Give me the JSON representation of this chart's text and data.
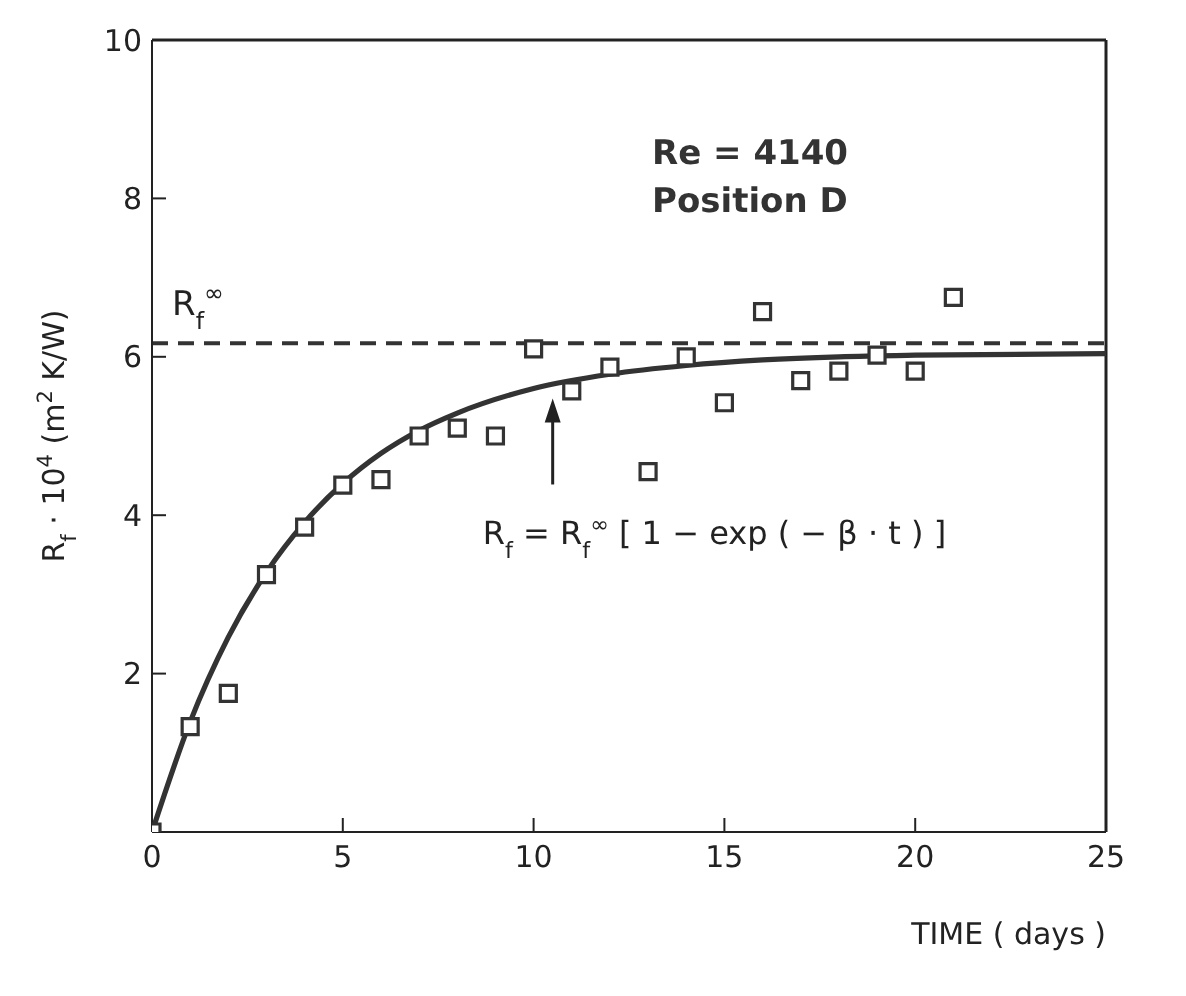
{
  "chart_data": {
    "type": "scatter",
    "xlabel": "TIME ( days )",
    "ylabel": "R$_{f}$ · 10$^{4}$ (m$^{2}$ K/W)",
    "xlim": [
      0,
      25
    ],
    "xticks": [
      0,
      5,
      10,
      15,
      20,
      25
    ],
    "ylim": [
      0,
      10
    ],
    "yticks": [
      {
        "value": 0,
        "label": null
      },
      2,
      4,
      6,
      8,
      10
    ],
    "grid": false,
    "legend": false,
    "series": [
      {
        "marker": "square",
        "color": "#333333",
        "x": [
          0,
          1,
          2,
          3,
          4,
          5,
          6,
          7,
          8,
          9,
          10,
          11,
          12,
          13,
          14,
          15,
          16,
          17,
          18,
          19,
          20,
          21
        ],
        "values": [
          0,
          1.33,
          1.75,
          3.25,
          3.85,
          4.38,
          4.45,
          5.0,
          5.1,
          5.0,
          6.1,
          5.57,
          5.87,
          4.55,
          6.0,
          5.42,
          6.57,
          5.7,
          5.82,
          6.02,
          5.82,
          6.75
        ]
      },
      {
        "type": "line",
        "marker": "none",
        "line_style": "solid",
        "color": "#333333",
        "x": [
          0,
          1,
          2,
          3,
          4,
          5,
          6,
          7,
          8,
          10,
          12,
          14,
          16,
          18,
          20,
          25
        ],
        "values": [
          0,
          1.39,
          2.46,
          3.28,
          3.91,
          4.4,
          4.78,
          5.07,
          5.29,
          5.6,
          5.78,
          5.89,
          5.96,
          6.0,
          6.02,
          6.04
        ]
      }
    ],
    "ref_lines": [
      {
        "axis": "y",
        "value": 6.17,
        "label": "R$_{f}$$^{∞}$",
        "line_style": "dashed",
        "color": "#333333"
      }
    ],
    "annotations": [
      "Re = 4140",
      "Position D",
      {
        "text": "R$_{f}$ = R$_{f}$$^{∞}$ [ 1 − exp ( − β · t ) ]",
        "x": 10.5,
        "y": 5.6
      }
    ]
  }
}
